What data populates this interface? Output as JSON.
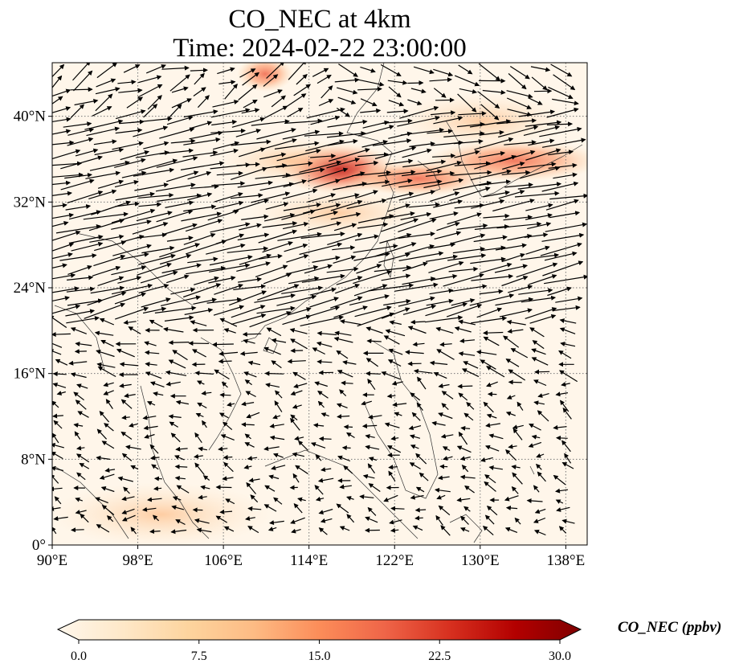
{
  "title": {
    "line1": "CO_NEC at 4km",
    "line2": "Time: 2024-02-22 23:00:00"
  },
  "map": {
    "lon_range": [
      90,
      140
    ],
    "lat_range": [
      0,
      45
    ],
    "lon_ticks": [
      "90°E",
      "98°E",
      "106°E",
      "114°E",
      "122°E",
      "130°E",
      "138°E"
    ],
    "lat_ticks": [
      "0°",
      "8°N",
      "16°N",
      "24°N",
      "32°N",
      "40°N"
    ],
    "gridlines": "dotted",
    "field": "CO_NEC concentration",
    "vectors": "wind arrows (black)"
  },
  "colorbar": {
    "label": "CO_NEC (ppbv)",
    "ticks": [
      "0.0",
      "7.5",
      "15.0",
      "22.5",
      "30.0"
    ],
    "range": [
      0,
      30
    ],
    "extend": "both",
    "colormap": [
      "#fff7ec",
      "#fee8c8",
      "#fdd49e",
      "#fdbb84",
      "#fc8d59",
      "#ef6548",
      "#d7301f",
      "#b30000",
      "#7f0000"
    ]
  }
}
